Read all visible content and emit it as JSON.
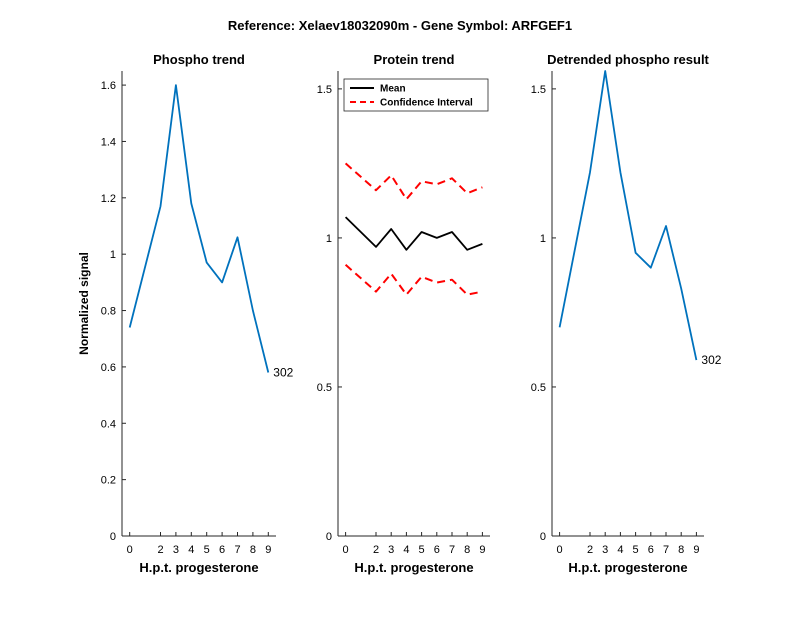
{
  "figure": {
    "title": "Reference:  Xelaev18032090m - Gene Symbol:  ARFGEF1"
  },
  "chart_data": [
    {
      "type": "line",
      "title": "Phospho trend",
      "xlabel": "H.p.t. progesterone",
      "ylabel": "Normalized signal",
      "xlim": [
        -0.5,
        9.5
      ],
      "ylim": [
        0,
        1.65
      ],
      "x_ticks": [
        0,
        2,
        3,
        4,
        5,
        6,
        7,
        8,
        9
      ],
      "y_ticks": [
        0,
        0.2,
        0.4,
        0.6,
        0.8,
        1,
        1.2,
        1.4,
        1.6
      ],
      "y_tick_labels": [
        "0",
        "0.2",
        "0.4",
        "0.6",
        "0.8",
        "1",
        "1.2",
        "1.4",
        "1.6"
      ],
      "series": [
        {
          "name": "302",
          "color": "#0072BD",
          "style": "solid",
          "x": [
            0,
            2,
            3,
            4,
            5,
            6,
            7,
            8,
            9
          ],
          "values": [
            0.74,
            1.17,
            1.6,
            1.18,
            0.97,
            0.9,
            1.06,
            0.8,
            0.58
          ]
        }
      ],
      "annotations": [
        {
          "text": "302",
          "x": 9,
          "y": 0.58
        }
      ]
    },
    {
      "type": "line",
      "title": "Protein trend",
      "xlabel": "H.p.t. progesterone",
      "ylabel": "",
      "xlim": [
        -0.5,
        9.5
      ],
      "ylim": [
        0,
        1.56
      ],
      "x_ticks": [
        0,
        2,
        3,
        4,
        5,
        6,
        7,
        8,
        9
      ],
      "y_ticks": [
        0,
        0.5,
        1,
        1.5
      ],
      "y_tick_labels": [
        "0",
        "0.5",
        "1",
        "1.5"
      ],
      "legend": [
        "Mean",
        "Confidence Interval"
      ],
      "legend_position": "top-left",
      "series": [
        {
          "name": "Mean",
          "color": "#000000",
          "style": "solid",
          "x": [
            0,
            2,
            3,
            4,
            5,
            6,
            7,
            8,
            9
          ],
          "values": [
            1.07,
            0.97,
            1.03,
            0.96,
            1.02,
            1.0,
            1.02,
            0.96,
            0.98
          ]
        },
        {
          "name": "Confidence Interval",
          "color": "#FF0000",
          "style": "dashed",
          "x": [
            0,
            2,
            3,
            4,
            5,
            6,
            7,
            8,
            9
          ],
          "values": [
            1.25,
            1.16,
            1.21,
            1.13,
            1.19,
            1.18,
            1.2,
            1.15,
            1.17
          ]
        },
        {
          "name": "Confidence Interval",
          "color": "#FF0000",
          "style": "dashed",
          "x": [
            0,
            2,
            3,
            4,
            5,
            6,
            7,
            8,
            9
          ],
          "values": [
            0.91,
            0.82,
            0.88,
            0.81,
            0.87,
            0.85,
            0.86,
            0.81,
            0.82
          ]
        }
      ],
      "annotations": []
    },
    {
      "type": "line",
      "title": "Detrended phospho result",
      "xlabel": "H.p.t. progesterone",
      "ylabel": "",
      "xlim": [
        -0.5,
        9.5
      ],
      "ylim": [
        0,
        1.56
      ],
      "x_ticks": [
        0,
        2,
        3,
        4,
        5,
        6,
        7,
        8,
        9
      ],
      "y_ticks": [
        0,
        0.5,
        1,
        1.5
      ],
      "y_tick_labels": [
        "0",
        "0.5",
        "1",
        "1.5"
      ],
      "series": [
        {
          "name": "302",
          "color": "#0072BD",
          "style": "solid",
          "x": [
            0,
            2,
            3,
            4,
            5,
            6,
            7,
            8,
            9
          ],
          "values": [
            0.7,
            1.22,
            1.56,
            1.22,
            0.95,
            0.9,
            1.04,
            0.83,
            0.59
          ]
        }
      ],
      "annotations": [
        {
          "text": "302",
          "x": 9,
          "y": 0.59
        }
      ]
    }
  ]
}
